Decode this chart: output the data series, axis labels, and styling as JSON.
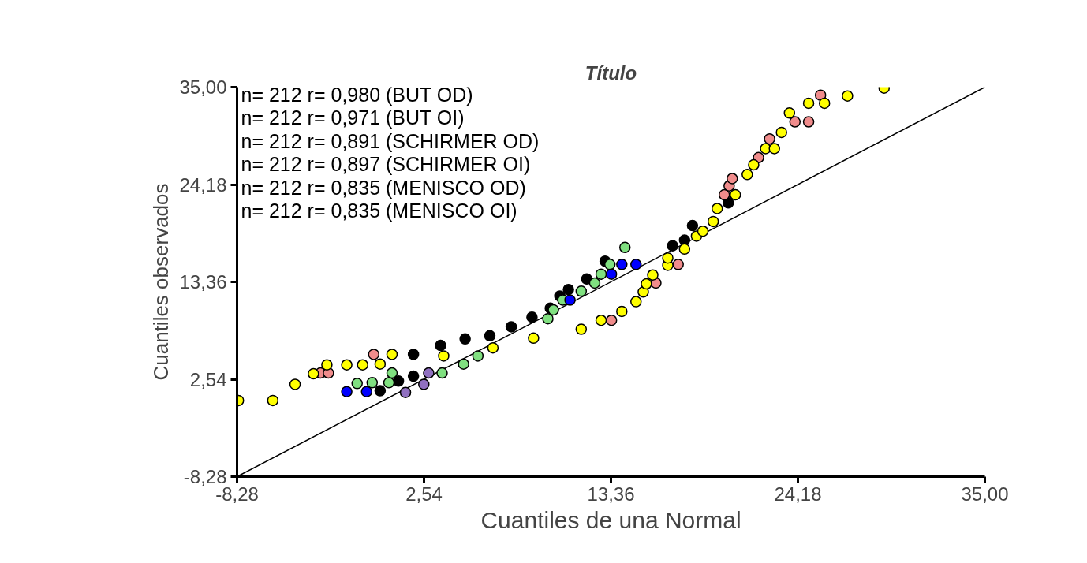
{
  "chart_data": {
    "type": "scatter",
    "title": "Título",
    "xlabel": "Cuantiles de una Normal",
    "ylabel": "Cuantiles observados",
    "xlim": [
      -8.28,
      35.0
    ],
    "ylim": [
      -8.28,
      35.0
    ],
    "xticks": [
      {
        "value": -8.28,
        "label": "-8,28"
      },
      {
        "value": 2.54,
        "label": "2,54"
      },
      {
        "value": 13.36,
        "label": "13,36"
      },
      {
        "value": 24.18,
        "label": "24,18"
      },
      {
        "value": 35.0,
        "label": "35,00"
      }
    ],
    "yticks": [
      {
        "value": -8.28,
        "label": "-8,28"
      },
      {
        "value": 2.54,
        "label": "2,54"
      },
      {
        "value": 13.36,
        "label": "13,36"
      },
      {
        "value": 24.18,
        "label": "24,18"
      },
      {
        "value": 35.0,
        "label": "35,00"
      }
    ],
    "grid": false,
    "marker": "circle",
    "annotations": [
      "n= 212 r= 0,980 (BUT OD)",
      "n= 212 r= 0,971 (BUT OI)",
      "n= 212 r= 0,891 (SCHIRMER OD)",
      "n= 212 r= 0,897 (SCHIRMER OI)",
      "n= 212 r= 0,835 (MENISCO OD)",
      "n= 212 r= 0,835 (MENISCO OI)"
    ],
    "series": [
      {
        "type": "line",
        "color": "#000000",
        "marker": "none",
        "x": [
          -8.28,
          35.0
        ],
        "values": [
          -8.28,
          35.0
        ]
      },
      {
        "color": "#000000",
        "x": [
          0.0,
          1.06,
          1.93,
          1.93,
          3.5,
          4.92,
          6.35,
          7.59,
          8.79,
          9.85,
          10.4,
          10.9,
          11.96,
          13.02,
          16.93,
          17.62,
          18.08,
          20.15
        ],
        "values": [
          1.26,
          2.34,
          2.88,
          5.31,
          6.3,
          7.02,
          7.38,
          8.37,
          9.45,
          10.44,
          11.79,
          12.51,
          13.68,
          15.66,
          17.37,
          18.0,
          19.62,
          22.14
        ]
      },
      {
        "color": "#f08c8c",
        "x": [
          -3.45,
          -2.99,
          -0.37,
          13.39,
          15.96,
          17.25,
          19.92,
          20.2,
          20.38,
          21.9,
          22.54,
          24.01,
          24.8,
          25.49
        ],
        "values": [
          3.24,
          3.24,
          5.31,
          9.09,
          13.23,
          15.3,
          23.04,
          24.03,
          24.84,
          27.18,
          29.25,
          31.14,
          31.14,
          34.11
        ]
      },
      {
        "color": "#ffff00",
        "x": [
          -8.2,
          -6.21,
          -4.92,
          -3.86,
          -3.08,
          -1.93,
          -1.01,
          0.0,
          0.69,
          3.68,
          6.53,
          8.88,
          11.64,
          12.79,
          13.99,
          14.81,
          15.23,
          15.41,
          15.78,
          16.65,
          16.65,
          17.62,
          18.31,
          18.68,
          19.28,
          19.51,
          20.56,
          21.25,
          21.62,
          22.31,
          22.82,
          23.23,
          23.69,
          24.8,
          25.72,
          27.05,
          29.17
        ],
        "values": [
          0.18,
          0.18,
          1.98,
          3.15,
          4.14,
          4.14,
          4.14,
          4.23,
          5.31,
          5.13,
          6.03,
          7.11,
          8.1,
          9.09,
          10.08,
          11.16,
          12.24,
          13.14,
          14.13,
          15.21,
          16.02,
          17.01,
          18.45,
          18.99,
          20.07,
          21.51,
          23.04,
          25.29,
          26.37,
          28.17,
          28.17,
          29.97,
          32.13,
          33.21,
          33.21,
          34.02,
          34.9
        ]
      },
      {
        "color": "#80e080",
        "x": [
          -1.33,
          -0.46,
          0.51,
          0.69,
          3.59,
          4.83,
          5.66,
          9.71,
          10.03,
          10.58,
          11.64,
          12.42,
          12.79,
          13.3,
          14.17
        ],
        "values": [
          2.07,
          2.16,
          2.16,
          3.24,
          3.24,
          4.23,
          5.13,
          9.27,
          10.26,
          11.34,
          12.33,
          13.23,
          14.22,
          15.3,
          17.19
        ]
      },
      {
        "color": "#0000ff",
        "x": [
          -1.93,
          -0.78,
          10.99,
          13.39,
          13.99,
          14.81
        ],
        "values": [
          1.17,
          1.17,
          11.34,
          14.22,
          15.3,
          15.3
        ]
      },
      {
        "color": "#9070c0",
        "x": [
          1.47,
          2.53,
          2.81
        ],
        "values": [
          1.08,
          1.98,
          3.24
        ]
      }
    ]
  }
}
